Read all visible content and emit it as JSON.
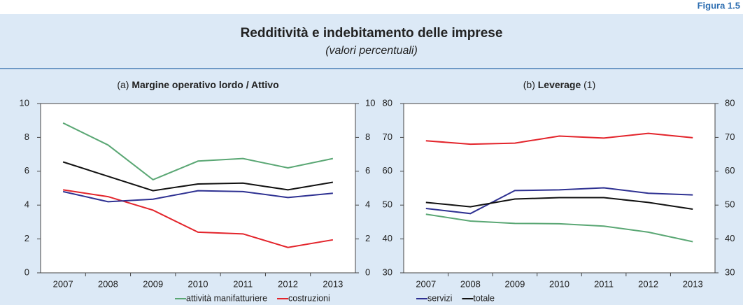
{
  "figure_label": "Figura 1.5",
  "title": "Redditività e indebitamento delle imprese",
  "subtitle": "(valori percentuali)",
  "chart_data": [
    {
      "type": "line",
      "panel": "(a)",
      "title": "Margine operativo lordo / Attivo",
      "categories": [
        "2007",
        "2008",
        "2009",
        "2010",
        "2011",
        "2012",
        "2013"
      ],
      "series": [
        {
          "name": "attività manifatturiere",
          "color": "#5aa774",
          "values": [
            8.85,
            7.55,
            5.5,
            6.6,
            6.75,
            6.2,
            6.75
          ]
        },
        {
          "name": "costruzioni",
          "color": "#e3242b",
          "values": [
            4.9,
            4.5,
            3.7,
            2.4,
            2.3,
            1.5,
            1.95
          ]
        },
        {
          "name": "servizi",
          "color": "#2e3192",
          "values": [
            4.8,
            4.2,
            4.35,
            4.85,
            4.8,
            4.45,
            4.7
          ]
        },
        {
          "name": "totale",
          "color": "#111111",
          "values": [
            6.55,
            5.7,
            4.85,
            5.25,
            5.3,
            4.9,
            5.35
          ]
        }
      ],
      "ylim": [
        0,
        10
      ],
      "yticks": [
        0,
        2,
        4,
        6,
        8,
        10
      ],
      "y2lim": [
        0,
        10
      ],
      "y2ticks": [
        0,
        2,
        4,
        6,
        8,
        10
      ]
    },
    {
      "type": "line",
      "panel": "(b)",
      "title": "Leverage",
      "note": "(1)",
      "categories": [
        "2007",
        "2008",
        "2009",
        "2010",
        "2011",
        "2012",
        "2013"
      ],
      "series": [
        {
          "name": "attività manifatturiere",
          "color": "#5aa774",
          "values": [
            47.3,
            45.3,
            44.6,
            44.5,
            43.8,
            42,
            39.2
          ]
        },
        {
          "name": "costruzioni",
          "color": "#e3242b",
          "values": [
            69,
            68,
            68.3,
            70.4,
            69.8,
            71.2,
            69.9
          ]
        },
        {
          "name": "servizi",
          "color": "#2e3192",
          "values": [
            49,
            47.5,
            54.3,
            54.5,
            55.1,
            53.5,
            53
          ]
        },
        {
          "name": "totale",
          "color": "#111111",
          "values": [
            50.8,
            49.5,
            51.8,
            52.2,
            52.2,
            50.8,
            48.8
          ]
        }
      ],
      "ylim": [
        30,
        80
      ],
      "yticks": [
        30,
        40,
        50,
        60,
        70,
        80
      ],
      "y2lim": [
        30,
        80
      ],
      "y2ticks": [
        30,
        40,
        50,
        60,
        70,
        80
      ]
    }
  ]
}
